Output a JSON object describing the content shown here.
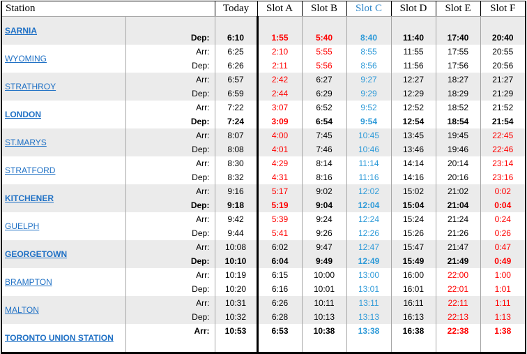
{
  "colors": {
    "black": "#000000",
    "red": "#ff0000",
    "time_blue": "#2e9ad8",
    "link_blue": "#2071c5",
    "slot_c_header_blue": "#2e86c9",
    "band_gray": "#ebebeb",
    "grid_gray": "#a6a6a6",
    "border_black": "#000000"
  },
  "header": {
    "station_label": "Station",
    "columns": [
      {
        "label": "Today",
        "color": "k"
      },
      {
        "label": "Slot A",
        "color": "k"
      },
      {
        "label": "Slot B",
        "color": "k"
      },
      {
        "label": "Slot C",
        "color": "b"
      },
      {
        "label": "Slot D",
        "color": "k"
      },
      {
        "label": "Slot E",
        "color": "k"
      },
      {
        "label": "Slot F",
        "color": "k"
      }
    ]
  },
  "stations": [
    {
      "name": "SARNIA",
      "bold": true,
      "shaded": true,
      "rows": [
        {
          "label": "",
          "bold": false,
          "times": [
            "",
            "",
            "",
            "",
            "",
            "",
            ""
          ],
          "colors": [
            "k",
            "k",
            "k",
            "k",
            "k",
            "k",
            "k"
          ]
        },
        {
          "label": "Dep:",
          "bold": true,
          "times": [
            "6:10",
            "1:55",
            "5:40",
            "8:40",
            "11:40",
            "17:40",
            "20:40"
          ],
          "colors": [
            "k",
            "r",
            "r",
            "b",
            "k",
            "k",
            "k"
          ]
        }
      ]
    },
    {
      "name": "WYOMING",
      "bold": false,
      "shaded": false,
      "rows": [
        {
          "label": "Arr:",
          "bold": false,
          "times": [
            "6:25",
            "2:10",
            "5:55",
            "8:55",
            "11:55",
            "17:55",
            "20:55"
          ],
          "colors": [
            "k",
            "r",
            "r",
            "b",
            "k",
            "k",
            "k"
          ]
        },
        {
          "label": "Dep:",
          "bold": false,
          "times": [
            "6:26",
            "2:11",
            "5:56",
            "8:56",
            "11:56",
            "17:56",
            "20:56"
          ],
          "colors": [
            "k",
            "r",
            "r",
            "b",
            "k",
            "k",
            "k"
          ]
        }
      ]
    },
    {
      "name": "STRATHROY",
      "bold": false,
      "shaded": true,
      "rows": [
        {
          "label": "Arr:",
          "bold": false,
          "times": [
            "6:57",
            "2:42",
            "6:27",
            "9:27",
            "12:27",
            "18:27",
            "21:27"
          ],
          "colors": [
            "k",
            "r",
            "k",
            "b",
            "k",
            "k",
            "k"
          ]
        },
        {
          "label": "Dep:",
          "bold": false,
          "times": [
            "6:59",
            "2:44",
            "6:29",
            "9:29",
            "12:29",
            "18:29",
            "21:29"
          ],
          "colors": [
            "k",
            "r",
            "k",
            "b",
            "k",
            "k",
            "k"
          ]
        }
      ]
    },
    {
      "name": "LONDON",
      "bold": true,
      "shaded": false,
      "rows": [
        {
          "label": "Arr:",
          "bold": false,
          "times": [
            "7:22",
            "3:07",
            "6:52",
            "9:52",
            "12:52",
            "18:52",
            "21:52"
          ],
          "colors": [
            "k",
            "r",
            "k",
            "b",
            "k",
            "k",
            "k"
          ]
        },
        {
          "label": "Dep:",
          "bold": true,
          "times": [
            "7:24",
            "3:09",
            "6:54",
            "9:54",
            "12:54",
            "18:54",
            "21:54"
          ],
          "colors": [
            "k",
            "r",
            "k",
            "b",
            "k",
            "k",
            "k"
          ]
        }
      ]
    },
    {
      "name": "ST.MARYS",
      "bold": false,
      "shaded": true,
      "rows": [
        {
          "label": "Arr:",
          "bold": false,
          "times": [
            "8:07",
            "4:00",
            "7:45",
            "10:45",
            "13:45",
            "19:45",
            "22:45"
          ],
          "colors": [
            "k",
            "r",
            "k",
            "b",
            "k",
            "k",
            "r"
          ]
        },
        {
          "label": "Dep:",
          "bold": false,
          "times": [
            "8:08",
            "4:01",
            "7:46",
            "10:46",
            "13:46",
            "19:46",
            "22:46"
          ],
          "colors": [
            "k",
            "r",
            "k",
            "b",
            "k",
            "k",
            "r"
          ]
        }
      ]
    },
    {
      "name": "STRATFORD",
      "bold": false,
      "shaded": false,
      "rows": [
        {
          "label": "Arr:",
          "bold": false,
          "times": [
            "8:30",
            "4:29",
            "8:14",
            "11:14",
            "14:14",
            "20:14",
            "23:14"
          ],
          "colors": [
            "k",
            "r",
            "k",
            "b",
            "k",
            "k",
            "r"
          ]
        },
        {
          "label": "Dep:",
          "bold": false,
          "times": [
            "8:32",
            "4:31",
            "8:16",
            "11:16",
            "14:16",
            "20:16",
            "23:16"
          ],
          "colors": [
            "k",
            "r",
            "k",
            "b",
            "k",
            "k",
            "r"
          ]
        }
      ]
    },
    {
      "name": "KITCHENER",
      "bold": true,
      "shaded": true,
      "rows": [
        {
          "label": "Arr:",
          "bold": false,
          "times": [
            "9:16",
            "5:17",
            "9:02",
            "12:02",
            "15:02",
            "21:02",
            "0:02"
          ],
          "colors": [
            "k",
            "r",
            "k",
            "b",
            "k",
            "k",
            "r"
          ]
        },
        {
          "label": "Dep:",
          "bold": true,
          "times": [
            "9:18",
            "5:19",
            "9:04",
            "12:04",
            "15:04",
            "21:04",
            "0:04"
          ],
          "colors": [
            "k",
            "r",
            "k",
            "b",
            "k",
            "k",
            "r"
          ]
        }
      ]
    },
    {
      "name": "GUELPH",
      "bold": false,
      "shaded": false,
      "rows": [
        {
          "label": "Arr:",
          "bold": false,
          "times": [
            "9:42",
            "5:39",
            "9:24",
            "12:24",
            "15:24",
            "21:24",
            "0:24"
          ],
          "colors": [
            "k",
            "r",
            "k",
            "b",
            "k",
            "k",
            "r"
          ]
        },
        {
          "label": "Dep:",
          "bold": false,
          "times": [
            "9:44",
            "5:41",
            "9:26",
            "12:26",
            "15:26",
            "21:26",
            "0:26"
          ],
          "colors": [
            "k",
            "r",
            "k",
            "b",
            "k",
            "k",
            "r"
          ]
        }
      ]
    },
    {
      "name": "GEORGETOWN",
      "bold": true,
      "shaded": true,
      "rows": [
        {
          "label": "Arr:",
          "bold": false,
          "times": [
            "10:08",
            "6:02",
            "9:47",
            "12:47",
            "15:47",
            "21:47",
            "0:47"
          ],
          "colors": [
            "k",
            "k",
            "k",
            "b",
            "k",
            "k",
            "r"
          ]
        },
        {
          "label": "Dep:",
          "bold": true,
          "times": [
            "10:10",
            "6:04",
            "9:49",
            "12:49",
            "15:49",
            "21:49",
            "0:49"
          ],
          "colors": [
            "k",
            "k",
            "k",
            "b",
            "k",
            "k",
            "r"
          ]
        }
      ]
    },
    {
      "name": "BRAMPTON",
      "bold": false,
      "shaded": false,
      "rows": [
        {
          "label": "Arr:",
          "bold": false,
          "times": [
            "10:19",
            "6:15",
            "10:00",
            "13:00",
            "16:00",
            "22:00",
            "1:00"
          ],
          "colors": [
            "k",
            "k",
            "k",
            "b",
            "k",
            "r",
            "r"
          ]
        },
        {
          "label": "Dep:",
          "bold": false,
          "times": [
            "10:20",
            "6:16",
            "10:01",
            "13:01",
            "16:01",
            "22:01",
            "1:01"
          ],
          "colors": [
            "k",
            "k",
            "k",
            "b",
            "k",
            "r",
            "r"
          ]
        }
      ]
    },
    {
      "name": "MALTON",
      "bold": false,
      "shaded": true,
      "rows": [
        {
          "label": "Arr:",
          "bold": false,
          "times": [
            "10:31",
            "6:26",
            "10:11",
            "13:11",
            "16:11",
            "22:11",
            "1:11"
          ],
          "colors": [
            "k",
            "k",
            "k",
            "b",
            "k",
            "r",
            "r"
          ]
        },
        {
          "label": "Dep:",
          "bold": false,
          "times": [
            "10:32",
            "6:28",
            "10:13",
            "13:13",
            "16:13",
            "22:13",
            "1:13"
          ],
          "colors": [
            "k",
            "k",
            "k",
            "b",
            "k",
            "r",
            "r"
          ]
        }
      ]
    },
    {
      "name": "TORONTO UNION STATION",
      "bold": true,
      "shaded": false,
      "rows": [
        {
          "label": "Arr:",
          "bold": true,
          "times": [
            "10:53",
            "6:53",
            "10:38",
            "13:38",
            "16:38",
            "22:38",
            "1:38"
          ],
          "colors": [
            "k",
            "k",
            "k",
            "b",
            "k",
            "r",
            "r"
          ]
        },
        {
          "label": "",
          "bold": false,
          "times": [
            "",
            "",
            "",
            "",
            "",
            "",
            ""
          ],
          "colors": [
            "k",
            "k",
            "k",
            "k",
            "k",
            "k",
            "k"
          ]
        }
      ]
    }
  ]
}
